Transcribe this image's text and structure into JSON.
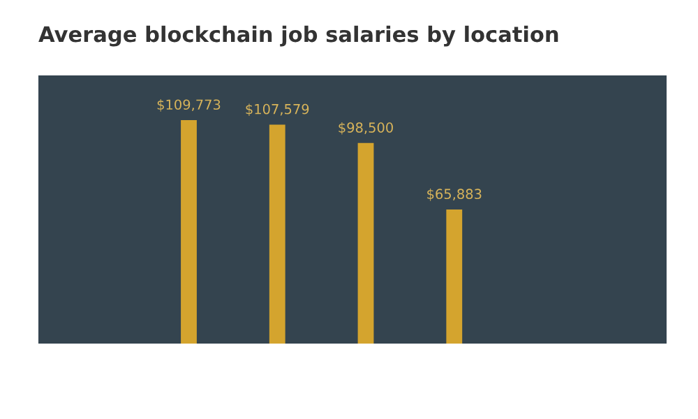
{
  "chart_data": {
    "type": "bar",
    "title": "Average blockchain job salaries by location",
    "categories": [
      null,
      null,
      null,
      null
    ],
    "values": [
      109773,
      107579,
      98500,
      65883
    ],
    "value_labels": [
      "$109,773",
      "$107,579",
      "$98,500",
      "$65,883"
    ],
    "color": "#d4a42e"
  }
}
